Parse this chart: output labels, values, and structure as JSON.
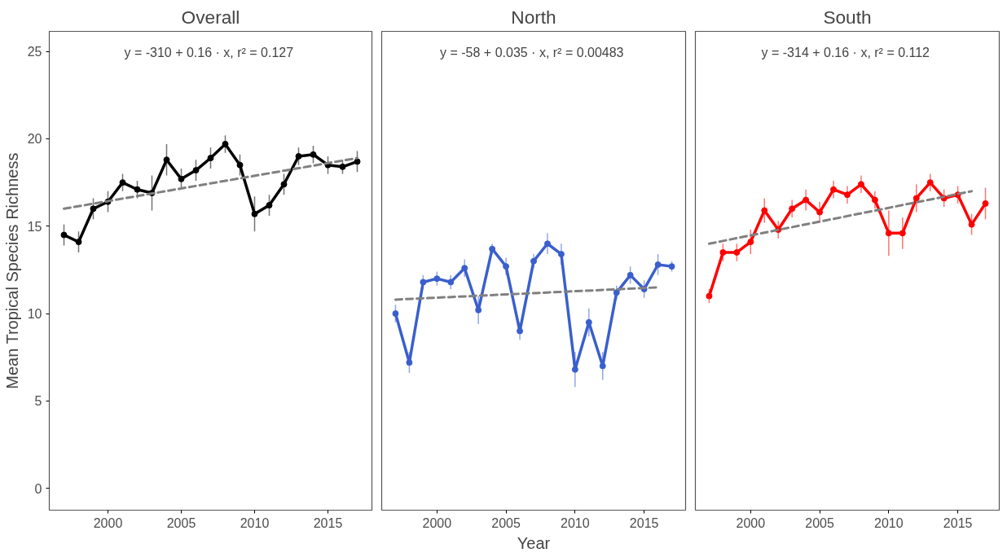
{
  "chart_data": [
    {
      "type": "line",
      "title": "Overall",
      "ylabel": "Mean Tropical Species Richness",
      "x": [
        1997,
        1998,
        1999,
        2000,
        2001,
        2002,
        2003,
        2004,
        2005,
        2006,
        2007,
        2008,
        2009,
        2010,
        2011,
        2012,
        2013,
        2014,
        2015,
        2016,
        2017
      ],
      "xlim": [
        1996,
        2018
      ],
      "ylim": [
        -1.25,
        26.15
      ],
      "xticks": [
        2000,
        2005,
        2010,
        2015
      ],
      "yticks": [
        0,
        5,
        10,
        15,
        20,
        25
      ],
      "grid": false,
      "annotations": [
        "y = -310 + 0.16 · x,  r² = 0.127"
      ],
      "series": [
        {
          "marker": "circle",
          "color": "#000000",
          "values": [
            14.5,
            14.1,
            16.0,
            16.4,
            17.5,
            17.1,
            16.9,
            18.8,
            17.7,
            18.2,
            18.9,
            19.7,
            18.5,
            15.7,
            16.2,
            17.4,
            19.0,
            19.1,
            18.5,
            18.4,
            18.7
          ],
          "errors": [
            0.6,
            0.6,
            0.6,
            0.6,
            0.5,
            0.5,
            1.0,
            0.9,
            0.6,
            0.6,
            0.6,
            0.5,
            0.6,
            1.0,
            0.6,
            0.6,
            0.5,
            0.5,
            0.5,
            0.4,
            0.6
          ]
        },
        {
          "color": "#808080",
          "line_style": "dashed",
          "x": [
            1997,
            2017
          ],
          "values": [
            16.0,
            18.9
          ]
        }
      ]
    },
    {
      "type": "line",
      "title": "North",
      "xlabel": "Year",
      "x": [
        1997,
        1998,
        1999,
        2000,
        2001,
        2002,
        2003,
        2004,
        2005,
        2006,
        2007,
        2008,
        2009,
        2010,
        2011,
        2012,
        2013,
        2014,
        2015,
        2016,
        2017
      ],
      "xlim": [
        1996,
        2018
      ],
      "ylim": [
        -1.25,
        26.15
      ],
      "xticks": [
        2000,
        2005,
        2010,
        2015
      ],
      "yticks": [
        0,
        5,
        10,
        15,
        20,
        25
      ],
      "tick_labels": "x",
      "grid": false,
      "annotations": [
        "y = -58 + 0.035 · x,  r² = 0.00483"
      ],
      "series": [
        {
          "marker": "circle",
          "color": "#3a5fcd",
          "values": [
            10.0,
            7.2,
            11.8,
            12.0,
            11.8,
            12.6,
            10.2,
            13.7,
            12.7,
            9.0,
            13.0,
            14.0,
            13.4,
            6.8,
            9.5,
            7.0,
            11.2,
            12.2,
            11.4,
            12.8,
            12.7
          ],
          "errors": [
            0.5,
            0.6,
            0.4,
            0.4,
            0.4,
            0.5,
            0.8,
            0.3,
            0.5,
            0.5,
            0.4,
            0.6,
            0.6,
            1.0,
            0.8,
            0.8,
            0.4,
            0.5,
            0.5,
            0.6,
            0.3
          ]
        },
        {
          "color": "#808080",
          "line_style": "dashed",
          "x": [
            1997,
            2016
          ],
          "values": [
            10.8,
            11.5
          ]
        }
      ]
    },
    {
      "type": "line",
      "title": "South",
      "x": [
        1997,
        1998,
        1999,
        2000,
        2001,
        2002,
        2003,
        2004,
        2005,
        2006,
        2007,
        2008,
        2009,
        2010,
        2011,
        2012,
        2013,
        2014,
        2015,
        2016,
        2017
      ],
      "xlim": [
        1996,
        2018
      ],
      "ylim": [
        -1.25,
        26.15
      ],
      "xticks": [
        2000,
        2005,
        2010,
        2015
      ],
      "yticks": [
        0,
        5,
        10,
        15,
        20,
        25
      ],
      "tick_labels": "x",
      "grid": false,
      "annotations": [
        "y = -314 + 0.16 · x,  r² = 0.112"
      ],
      "series": [
        {
          "marker": "circle",
          "color": "#ff0000",
          "values": [
            11.0,
            13.5,
            13.5,
            14.1,
            15.9,
            14.8,
            16.0,
            16.5,
            15.8,
            17.1,
            16.8,
            17.4,
            16.5,
            14.6,
            14.6,
            16.6,
            17.5,
            16.6,
            16.8,
            15.1,
            16.3
          ],
          "errors": [
            0.4,
            0.5,
            0.5,
            0.7,
            0.7,
            0.5,
            0.5,
            0.6,
            0.6,
            0.5,
            0.5,
            0.5,
            0.5,
            1.3,
            0.9,
            0.8,
            0.5,
            0.5,
            0.5,
            0.6,
            0.9
          ]
        },
        {
          "color": "#808080",
          "line_style": "dashed",
          "x": [
            1997,
            2016
          ],
          "values": [
            14.0,
            17.0
          ]
        }
      ]
    }
  ]
}
